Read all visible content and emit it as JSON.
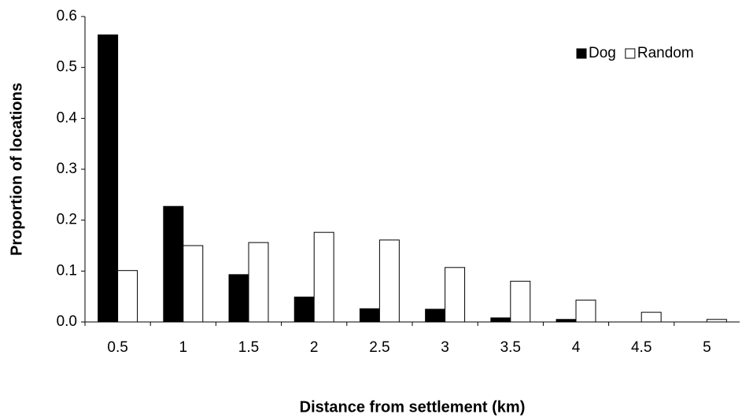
{
  "chart_data": {
    "type": "bar",
    "x_label": "Distance from settlement (km)",
    "y_label": "Proportion of locations",
    "categories": [
      "0.5",
      "1",
      "1.5",
      "2",
      "2.5",
      "3",
      "3.5",
      "4",
      "4.5",
      "5"
    ],
    "series": [
      {
        "name": "Dog",
        "color": "#000000",
        "values": [
          0.564,
          0.227,
          0.093,
          0.049,
          0.026,
          0.025,
          0.008,
          0.005,
          0,
          0
        ]
      },
      {
        "name": "Random",
        "color": "#ffffff",
        "values": [
          0.101,
          0.15,
          0.156,
          0.176,
          0.161,
          0.107,
          0.08,
          0.043,
          0.019,
          0.005
        ]
      }
    ],
    "ylim": [
      0,
      0.6
    ],
    "yticks": [
      {
        "value": 0,
        "label": "0.0"
      },
      0.1,
      0.2,
      0.3,
      0.4,
      0.5,
      0.6
    ],
    "grid": false,
    "legend": "top-right"
  }
}
